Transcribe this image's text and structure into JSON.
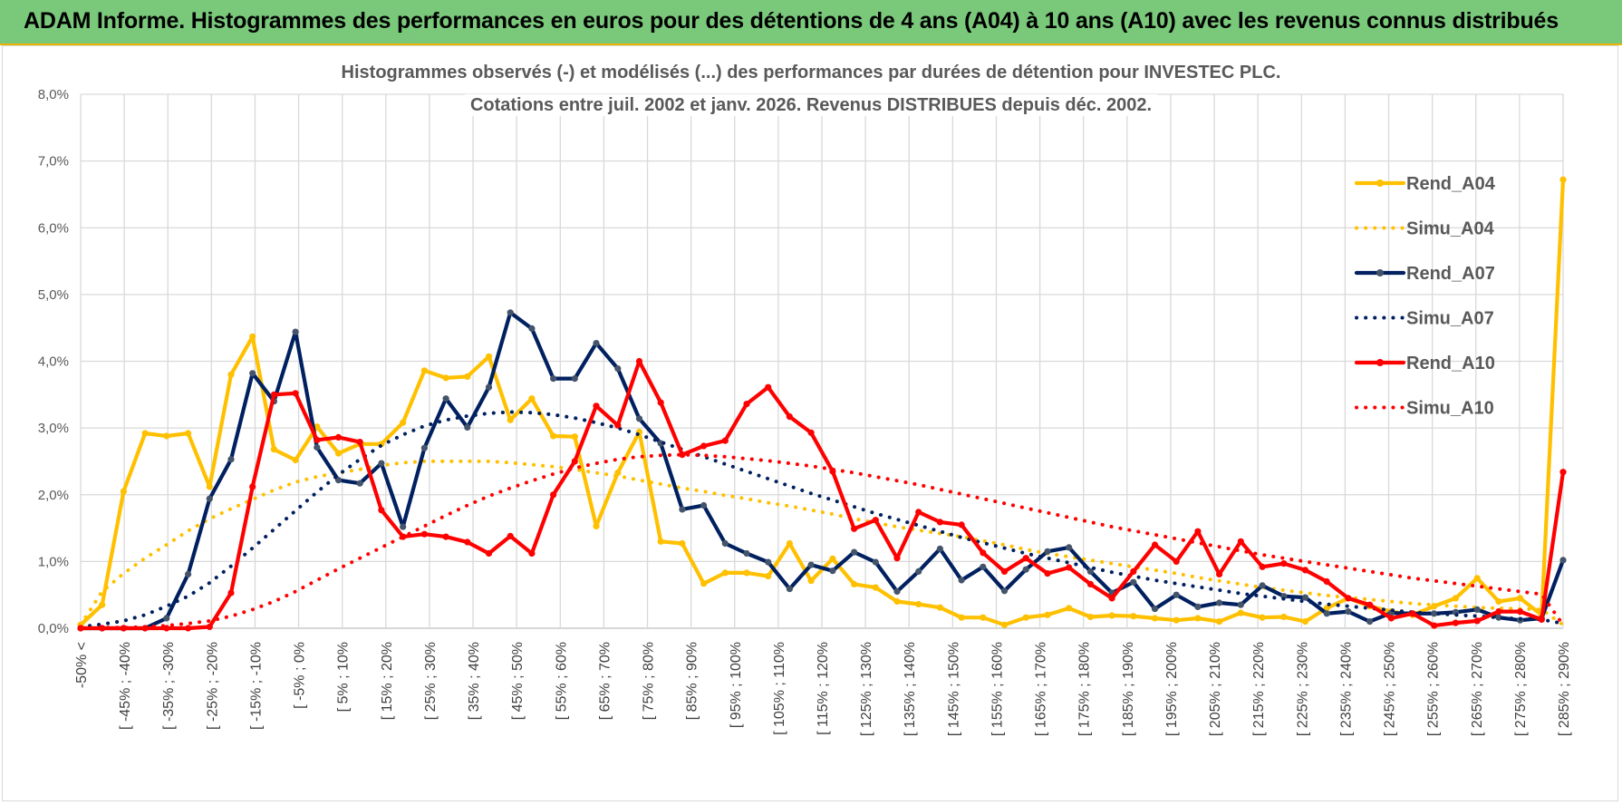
{
  "page": {
    "banner_title": "ADAM Informe. Histogrammes des performances en euros pour des détentions de 4 ans (A04) à 10 ans (A10) avec les revenus connus distribués"
  },
  "chart_data": {
    "type": "line",
    "title_lines": [
      "Histogrammes observés (-) et modélisés (...) des performances par durées de détention pour INVESTEC PLC.",
      "Cotations entre juil. 2002 et janv. 2026. Revenus DISTRIBUES depuis déc. 2002."
    ],
    "ylim": [
      0,
      8
    ],
    "yticks": [
      "0,0%",
      "1,0%",
      "2,0%",
      "3,0%",
      "4,0%",
      "5,0%",
      "6,0%",
      "7,0%",
      "8,0%"
    ],
    "grid": true,
    "legend_position": "right",
    "x_labels": [
      "-50% <",
      "[ -45% ; -40%",
      "[ -35% ; -30%",
      "[ -25% ; -20%",
      "[ -15% ; -10%",
      "[ -5% ; 0%",
      "[ 5% ; 10%",
      "[ 15% ; 20%",
      "[ 25% ; 30%",
      "[ 35% ; 40%",
      "[ 45% ; 50%",
      "[ 55% ; 60%",
      "[ 65% ; 70%",
      "[ 75% ; 80%",
      "[ 85% ; 90%",
      "[ 95% ; 100%",
      "[ 105% ; 110%",
      "[ 115% ; 120%",
      "[ 125% ; 130%",
      "[ 135% ; 140%",
      "[ 145% ; 150%",
      "[ 155% ; 160%",
      "[ 165% ; 170%",
      "[ 175% ; 180%",
      "[ 185% ; 190%",
      "[ 195% ; 200%",
      "[ 205% ; 210%",
      "[ 215% ; 220%",
      "[ 225% ; 230%",
      "[ 235% ; 240%",
      "[ 245% ; 250%",
      "[ 255% ; 260%",
      "[ 265% ; 270%",
      "[ 275% ; 280%",
      "[ 285% ; 290%"
    ],
    "series": [
      {
        "name": "Rend_A04",
        "color": "#ffc000",
        "style": "solid",
        "markers": true,
        "values": [
          0.05,
          0.35,
          2.05,
          2.92,
          2.88,
          2.92,
          2.12,
          3.8,
          4.37,
          2.68,
          2.52,
          3.02,
          2.62,
          2.76,
          2.76,
          3.08,
          3.86,
          3.75,
          3.77,
          4.07,
          3.12,
          3.44,
          2.88,
          2.87,
          1.53,
          2.33,
          2.94,
          1.3,
          1.27,
          0.67,
          0.83,
          0.83,
          0.78,
          1.27,
          0.71,
          1.04,
          0.66,
          0.61,
          0.4,
          0.36,
          0.31,
          0.16,
          0.16,
          0.05,
          0.16,
          0.2,
          0.3,
          0.17,
          0.19,
          0.18,
          0.15,
          0.12,
          0.15,
          0.1,
          0.23,
          0.16,
          0.17,
          0.1,
          0.3,
          0.45,
          0.33,
          0.25,
          0.2,
          0.33,
          0.45,
          0.75,
          0.4,
          0.45,
          0.2,
          6.72
        ]
      },
      {
        "name": "Simu_A04",
        "color": "#ffc000",
        "style": "dotted",
        "markers": false,
        "values": [
          0.05,
          0.55,
          0.82,
          1.05,
          1.25,
          1.46,
          1.64,
          1.79,
          1.93,
          2.07,
          2.19,
          2.27,
          2.33,
          2.38,
          2.44,
          2.48,
          2.5,
          2.5,
          2.5,
          2.5,
          2.48,
          2.45,
          2.42,
          2.38,
          2.33,
          2.28,
          2.22,
          2.16,
          2.1,
          2.05,
          1.99,
          1.94,
          1.88,
          1.83,
          1.77,
          1.71,
          1.64,
          1.58,
          1.52,
          1.47,
          1.42,
          1.37,
          1.31,
          1.25,
          1.18,
          1.12,
          1.07,
          1.02,
          0.97,
          0.92,
          0.87,
          0.82,
          0.76,
          0.71,
          0.66,
          0.61,
          0.57,
          0.53,
          0.49,
          0.46,
          0.43,
          0.4,
          0.37,
          0.35,
          0.33,
          0.31,
          0.3,
          0.29,
          0.28,
          0.05
        ]
      },
      {
        "name": "Rend_A07",
        "color": "#002060",
        "style": "solid",
        "markers": true,
        "values": [
          0.0,
          0.0,
          0.0,
          0.0,
          0.15,
          0.81,
          1.94,
          2.53,
          3.82,
          3.4,
          4.44,
          2.71,
          2.22,
          2.17,
          2.47,
          1.52,
          2.7,
          3.44,
          3.01,
          3.61,
          4.73,
          4.49,
          3.74,
          3.74,
          4.27,
          3.89,
          3.14,
          2.77,
          1.78,
          1.84,
          1.27,
          1.12,
          0.99,
          0.59,
          0.95,
          0.86,
          1.14,
          0.99,
          0.55,
          0.85,
          1.19,
          0.72,
          0.92,
          0.56,
          0.88,
          1.15,
          1.21,
          0.85,
          0.53,
          0.69,
          0.29,
          0.5,
          0.32,
          0.38,
          0.35,
          0.64,
          0.48,
          0.46,
          0.22,
          0.25,
          0.1,
          0.23,
          0.22,
          0.22,
          0.24,
          0.28,
          0.16,
          0.12,
          0.15,
          1.02
        ]
      },
      {
        "name": "Simu_A07",
        "color": "#002060",
        "style": "dotted",
        "markers": false,
        "values": [
          0.02,
          0.06,
          0.11,
          0.2,
          0.33,
          0.48,
          0.68,
          0.93,
          1.2,
          1.48,
          1.76,
          2.04,
          2.3,
          2.53,
          2.74,
          2.9,
          3.03,
          3.12,
          3.18,
          3.22,
          3.24,
          3.23,
          3.2,
          3.15,
          3.08,
          3.0,
          2.9,
          2.79,
          2.68,
          2.57,
          2.46,
          2.35,
          2.24,
          2.13,
          2.02,
          1.92,
          1.82,
          1.72,
          1.63,
          1.54,
          1.45,
          1.36,
          1.28,
          1.2,
          1.12,
          1.05,
          0.98,
          0.91,
          0.84,
          0.78,
          0.72,
          0.67,
          0.62,
          0.57,
          0.52,
          0.48,
          0.44,
          0.4,
          0.36,
          0.33,
          0.3,
          0.27,
          0.24,
          0.22,
          0.2,
          0.18,
          0.16,
          0.14,
          0.13,
          0.07
        ]
      },
      {
        "name": "Rend_A10",
        "color": "#ff0000",
        "style": "solid",
        "markers": true,
        "values": [
          0.0,
          0.0,
          0.0,
          0.0,
          0.0,
          0.0,
          0.02,
          0.53,
          2.12,
          3.5,
          3.52,
          2.82,
          2.86,
          2.79,
          1.77,
          1.37,
          1.41,
          1.37,
          1.29,
          1.12,
          1.38,
          1.12,
          2.0,
          2.5,
          3.33,
          3.04,
          4.0,
          3.38,
          2.6,
          2.73,
          2.81,
          3.36,
          3.61,
          3.17,
          2.93,
          2.35,
          1.49,
          1.62,
          1.05,
          1.74,
          1.59,
          1.55,
          1.13,
          0.85,
          1.05,
          0.82,
          0.91,
          0.66,
          0.45,
          0.85,
          1.25,
          1.0,
          1.45,
          0.81,
          1.3,
          0.92,
          0.97,
          0.87,
          0.7,
          0.45,
          0.35,
          0.15,
          0.22,
          0.04,
          0.08,
          0.11,
          0.25,
          0.25,
          0.13,
          2.34
        ]
      },
      {
        "name": "Simu_A10",
        "color": "#ff0000",
        "style": "dotted",
        "markers": false,
        "values": [
          0.0,
          0.01,
          0.01,
          0.02,
          0.04,
          0.07,
          0.11,
          0.18,
          0.28,
          0.4,
          0.55,
          0.72,
          0.89,
          1.05,
          1.21,
          1.37,
          1.53,
          1.69,
          1.84,
          1.98,
          2.1,
          2.21,
          2.31,
          2.4,
          2.47,
          2.53,
          2.57,
          2.59,
          2.6,
          2.59,
          2.57,
          2.54,
          2.51,
          2.47,
          2.43,
          2.38,
          2.33,
          2.27,
          2.21,
          2.15,
          2.08,
          2.01,
          1.94,
          1.87,
          1.8,
          1.73,
          1.66,
          1.59,
          1.52,
          1.46,
          1.4,
          1.34,
          1.28,
          1.22,
          1.16,
          1.1,
          1.05,
          1.0,
          0.95,
          0.9,
          0.85,
          0.8,
          0.75,
          0.71,
          0.67,
          0.63,
          0.59,
          0.55,
          0.51,
          0.05
        ]
      }
    ]
  }
}
